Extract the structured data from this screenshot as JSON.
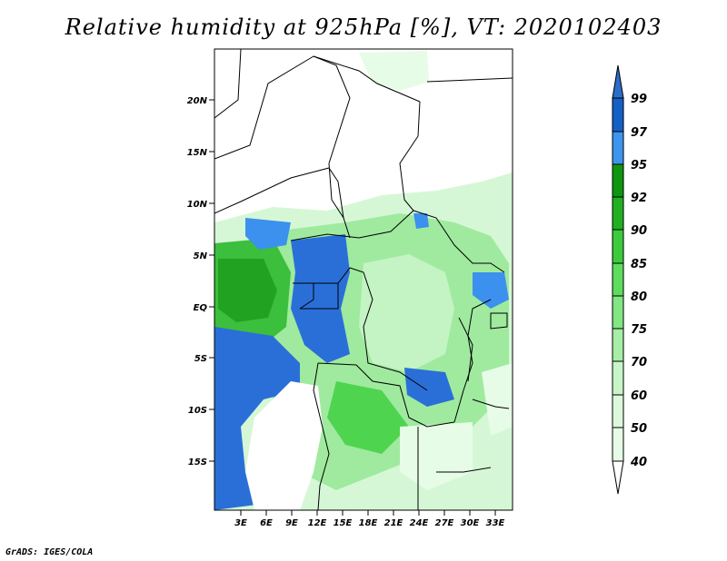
{
  "title": "Relative humidity at 925hPa [%], VT: 2020102403",
  "footer": "GrADS: IGES/COLA",
  "map": {
    "lat_labels": [
      "20N",
      "15N",
      "10N",
      "5N",
      "EQ",
      "5S",
      "10S",
      "15S"
    ],
    "lon_labels": [
      "3E",
      "6E",
      "9E",
      "12E",
      "15E",
      "18E",
      "21E",
      "24E",
      "27E",
      "30E",
      "33E"
    ]
  },
  "colorbar": {
    "levels": [
      "99",
      "97",
      "95",
      "92",
      "90",
      "85",
      "80",
      "75",
      "70",
      "60",
      "50",
      "40"
    ],
    "colors": [
      "#ffffff",
      "#e6fce6",
      "#c8f5c8",
      "#a6eea6",
      "#82e682",
      "#5ddc5d",
      "#3ccb3c",
      "#21b021",
      "#0f960f",
      "#3d95ee",
      "#1f6fd6",
      "#1560c6",
      "#2a6ec8"
    ]
  },
  "colors": {
    "land_dry": "#ffffff",
    "rh_very_light": "#e6fce6",
    "rh_light": "#b9f2b9",
    "rh_mid": "#6ee06e",
    "rh_dark": "#2db22d",
    "rh_very_dark": "#1a9a1a",
    "rh_blue": "#2a6fd8",
    "rh_blue_light": "#3c90ee"
  }
}
